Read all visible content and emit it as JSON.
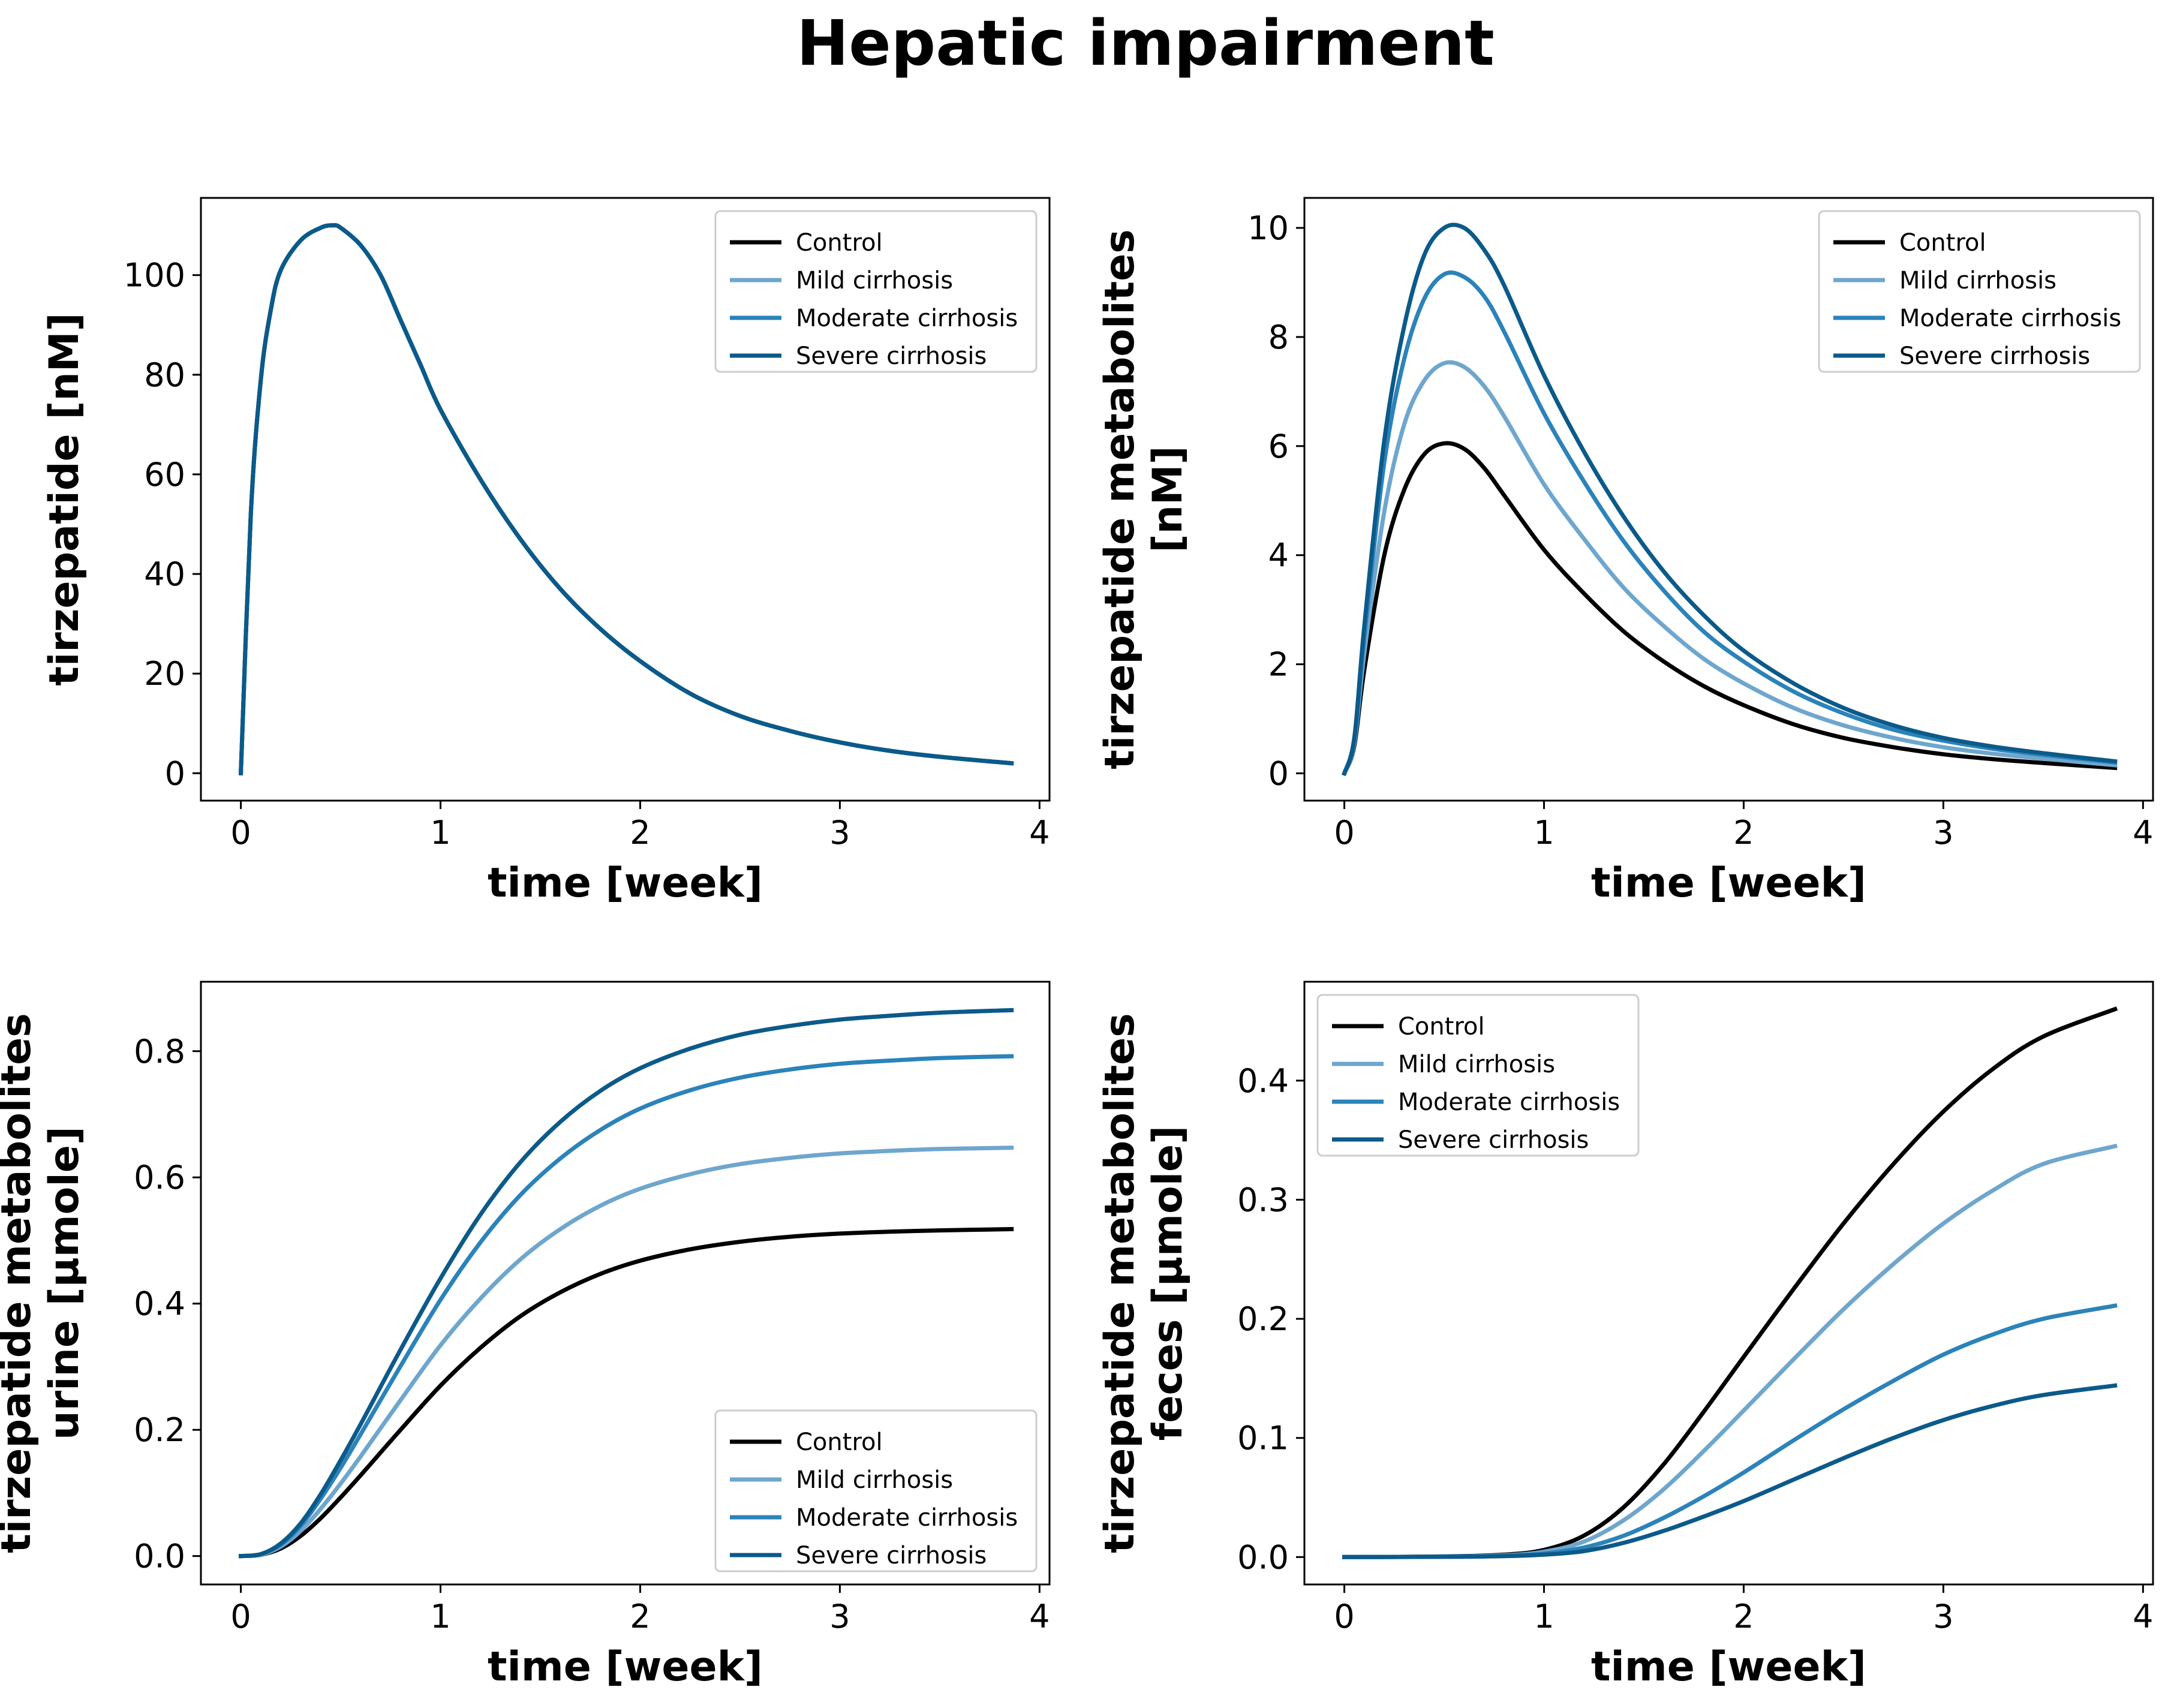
{
  "figure": {
    "title": "Hepatic impairment"
  },
  "colors": {
    "control": "#000000",
    "mild": "#6ea6cd",
    "moderate": "#2b83ba",
    "severe": "#0b5a8a"
  },
  "chart_data": [
    {
      "type": "line",
      "xlabel": "time [week]",
      "ylabel_lines": [
        "tirzepatide [nM]"
      ],
      "xlim": [
        -0.2,
        4.05
      ],
      "ylim": [
        -5.5,
        115.5
      ],
      "xticks": [
        0,
        1,
        2,
        3,
        4
      ],
      "yticks": [
        0,
        20,
        40,
        60,
        80,
        100
      ],
      "legend": "upper-right",
      "x": [
        0,
        0.05,
        0.1,
        0.15,
        0.2,
        0.3,
        0.4,
        0.46,
        0.5,
        0.6,
        0.7,
        0.8,
        0.9,
        1.0,
        1.2,
        1.4,
        1.6,
        1.8,
        2.0,
        2.25,
        2.5,
        2.75,
        3.0,
        3.25,
        3.5,
        3.86
      ],
      "series": [
        {
          "name": "Control",
          "color_key": "control",
          "values": [
            0,
            52,
            79,
            93,
            101,
            107,
            109.5,
            110,
            109.5,
            106,
            100,
            91,
            82,
            73,
            59,
            47,
            37,
            29,
            22.5,
            16,
            11.5,
            8.5,
            6.2,
            4.5,
            3.3,
            2.0
          ]
        },
        {
          "name": "Mild cirrhosis",
          "color_key": "mild",
          "values": [
            0,
            52,
            79,
            93,
            101,
            107,
            109.5,
            110,
            109.5,
            106,
            100,
            91,
            82,
            73,
            59,
            47,
            37,
            29,
            22.5,
            16,
            11.5,
            8.5,
            6.2,
            4.5,
            3.3,
            2.0
          ]
        },
        {
          "name": "Moderate cirrhosis",
          "color_key": "moderate",
          "values": [
            0,
            52,
            79,
            93,
            101,
            107,
            109.5,
            110,
            109.5,
            106,
            100,
            91,
            82,
            73,
            59,
            47,
            37,
            29,
            22.5,
            16,
            11.5,
            8.5,
            6.2,
            4.5,
            3.3,
            2.0
          ]
        },
        {
          "name": "Severe cirrhosis",
          "color_key": "severe",
          "values": [
            0,
            52,
            79,
            93,
            101,
            107,
            109.5,
            110,
            109.5,
            106,
            100,
            91,
            82,
            73,
            59,
            47,
            37,
            29,
            22.5,
            16,
            11.5,
            8.5,
            6.2,
            4.5,
            3.3,
            2.0
          ]
        }
      ]
    },
    {
      "type": "line",
      "xlabel": "time [week]",
      "ylabel_lines": [
        "tirzepatide metabolites",
        "[nM]"
      ],
      "xlim": [
        -0.2,
        4.05
      ],
      "ylim": [
        -0.5,
        10.55
      ],
      "xticks": [
        0,
        1,
        2,
        3,
        4
      ],
      "yticks": [
        0,
        2,
        4,
        6,
        8,
        10
      ],
      "legend": "upper-right",
      "x": [
        0,
        0.05,
        0.1,
        0.2,
        0.3,
        0.4,
        0.5,
        0.6,
        0.7,
        0.8,
        1.0,
        1.2,
        1.4,
        1.6,
        1.8,
        2.0,
        2.25,
        2.5,
        2.75,
        3.0,
        3.25,
        3.5,
        3.86
      ],
      "series": [
        {
          "name": "Control",
          "color_key": "control",
          "values": [
            0,
            0.5,
            1.9,
            4.0,
            5.2,
            5.85,
            6.05,
            5.95,
            5.6,
            5.1,
            4.1,
            3.3,
            2.6,
            2.05,
            1.6,
            1.25,
            0.9,
            0.65,
            0.48,
            0.35,
            0.26,
            0.19,
            0.1
          ]
        },
        {
          "name": "Mild cirrhosis",
          "color_key": "mild",
          "values": [
            0,
            0.55,
            2.2,
            4.8,
            6.4,
            7.2,
            7.52,
            7.45,
            7.1,
            6.55,
            5.3,
            4.3,
            3.4,
            2.7,
            2.1,
            1.65,
            1.2,
            0.88,
            0.65,
            0.48,
            0.36,
            0.27,
            0.15
          ]
        },
        {
          "name": "Moderate cirrhosis",
          "color_key": "moderate",
          "values": [
            0,
            0.6,
            2.5,
            5.7,
            7.6,
            8.7,
            9.15,
            9.1,
            8.75,
            8.1,
            6.6,
            5.35,
            4.25,
            3.35,
            2.6,
            2.05,
            1.5,
            1.1,
            0.8,
            0.6,
            0.45,
            0.34,
            0.2
          ]
        },
        {
          "name": "Severe cirrhosis",
          "color_key": "severe",
          "values": [
            0,
            0.65,
            2.7,
            6.1,
            8.2,
            9.5,
            10.0,
            10.0,
            9.6,
            8.95,
            7.3,
            5.9,
            4.7,
            3.7,
            2.9,
            2.25,
            1.65,
            1.2,
            0.88,
            0.65,
            0.49,
            0.37,
            0.22
          ]
        }
      ]
    },
    {
      "type": "line",
      "xlabel": "time [week]",
      "ylabel_lines": [
        "tirzepatide metabolites",
        "urine [µmole]"
      ],
      "xlim": [
        -0.2,
        4.05
      ],
      "ylim": [
        -0.045,
        0.91
      ],
      "xticks": [
        0,
        1,
        2,
        3,
        4
      ],
      "yticks": [
        0.0,
        0.2,
        0.4,
        0.6,
        0.8
      ],
      "ytick_decimals": 1,
      "legend": "lower-right",
      "x": [
        0,
        0.1,
        0.2,
        0.3,
        0.4,
        0.5,
        0.6,
        0.8,
        1.0,
        1.2,
        1.4,
        1.6,
        1.8,
        2.0,
        2.25,
        2.5,
        2.75,
        3.0,
        3.25,
        3.5,
        3.86
      ],
      "series": [
        {
          "name": "Control",
          "color_key": "control",
          "values": [
            0,
            0.002,
            0.012,
            0.032,
            0.06,
            0.093,
            0.128,
            0.2,
            0.27,
            0.33,
            0.38,
            0.418,
            0.447,
            0.468,
            0.486,
            0.498,
            0.506,
            0.511,
            0.514,
            0.516,
            0.518
          ]
        },
        {
          "name": "Mild cirrhosis",
          "color_key": "mild",
          "values": [
            0,
            0.002,
            0.015,
            0.04,
            0.075,
            0.115,
            0.158,
            0.247,
            0.334,
            0.408,
            0.47,
            0.518,
            0.555,
            0.582,
            0.605,
            0.621,
            0.631,
            0.638,
            0.642,
            0.645,
            0.647
          ]
        },
        {
          "name": "Moderate cirrhosis",
          "color_key": "moderate",
          "values": [
            0,
            0.003,
            0.018,
            0.048,
            0.091,
            0.14,
            0.193,
            0.301,
            0.406,
            0.497,
            0.572,
            0.63,
            0.675,
            0.709,
            0.738,
            0.758,
            0.771,
            0.78,
            0.785,
            0.789,
            0.792
          ]
        },
        {
          "name": "Severe cirrhosis",
          "color_key": "severe",
          "values": [
            0,
            0.003,
            0.02,
            0.052,
            0.098,
            0.152,
            0.209,
            0.327,
            0.44,
            0.541,
            0.624,
            0.688,
            0.737,
            0.773,
            0.804,
            0.826,
            0.84,
            0.85,
            0.856,
            0.861,
            0.865
          ]
        }
      ]
    },
    {
      "type": "line",
      "xlabel": "time [week]",
      "ylabel_lines": [
        "tirzepatide metabolites",
        "feces [µmole]"
      ],
      "xlim": [
        -0.2,
        4.05
      ],
      "ylim": [
        -0.023,
        0.483
      ],
      "xticks": [
        0,
        1,
        2,
        3,
        4
      ],
      "yticks": [
        0.0,
        0.1,
        0.2,
        0.3,
        0.4
      ],
      "ytick_decimals": 1,
      "legend": "upper-left",
      "x": [
        0,
        0.5,
        0.8,
        1.0,
        1.2,
        1.4,
        1.6,
        1.8,
        2.0,
        2.25,
        2.5,
        2.75,
        3.0,
        3.25,
        3.5,
        3.86
      ],
      "series": [
        {
          "name": "Control",
          "color_key": "control",
          "values": [
            0,
            0.0005,
            0.002,
            0.006,
            0.018,
            0.042,
            0.078,
            0.122,
            0.168,
            0.225,
            0.28,
            0.33,
            0.374,
            0.41,
            0.437,
            0.46
          ]
        },
        {
          "name": "Mild cirrhosis",
          "color_key": "mild",
          "values": [
            0,
            0.0004,
            0.0015,
            0.0045,
            0.013,
            0.031,
            0.057,
            0.089,
            0.123,
            0.166,
            0.208,
            0.246,
            0.28,
            0.308,
            0.33,
            0.345
          ]
        },
        {
          "name": "Moderate cirrhosis",
          "color_key": "moderate",
          "values": [
            0,
            0.0003,
            0.001,
            0.003,
            0.008,
            0.018,
            0.033,
            0.051,
            0.071,
            0.098,
            0.124,
            0.148,
            0.17,
            0.187,
            0.2,
            0.211
          ]
        },
        {
          "name": "Severe cirrhosis",
          "color_key": "severe",
          "values": [
            0,
            0.0002,
            0.0008,
            0.002,
            0.005,
            0.012,
            0.022,
            0.034,
            0.047,
            0.065,
            0.083,
            0.1,
            0.115,
            0.127,
            0.136,
            0.144
          ]
        }
      ]
    }
  ]
}
